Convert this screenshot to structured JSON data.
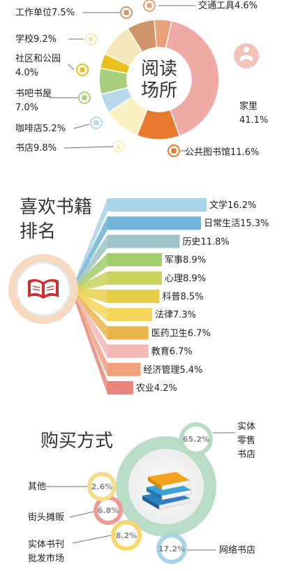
{
  "palette": {
    "line": "#6d6d6d",
    "ring_gray": "#e6e6e6",
    "book_red": "#cf2e2e",
    "home_pink": "#f2bcb8",
    "library_orange": "#e47b2e",
    "coffee_teal": "#6aa9c8"
  },
  "reading_places": {
    "center_title_line1": "阅读",
    "center_title_line2": "场所"
  },
  "favorite_books": {
    "title_line1": "喜欢书籍",
    "title_line2": "排名"
  },
  "purchase": {
    "title": "购买方式"
  },
  "chart_data": [
    {
      "type": "pie",
      "title": "阅读场所",
      "slices": [
        {
          "label": "家里",
          "value": 41.1,
          "value_label": "41.1%",
          "color": "#efaaa6",
          "icon": "home-reading-icon"
        },
        {
          "label": "公共图书馆",
          "value": 11.6,
          "value_label": "11.6%",
          "color": "#e8792d",
          "icon": "library-icon"
        },
        {
          "label": "书店",
          "value": 9.8,
          "value_label": "9.8%",
          "color": "#fbf0c0",
          "icon": "bookstore-icon"
        },
        {
          "label": "咖啡店",
          "value": 5.2,
          "value_label": "5.2%",
          "color": "#b7d7ea",
          "icon": "coffee-cup-icon"
        },
        {
          "label": "书吧书屋",
          "value": 7.0,
          "value_label": "7.0%",
          "color": "#a9cf7c",
          "icon": "book-bar-icon"
        },
        {
          "label": "社区和公园",
          "value": 4.0,
          "value_label": "4.0%",
          "color": "#e8c21c",
          "icon": "park-tree-icon"
        },
        {
          "label": "学校",
          "value": 9.2,
          "value_label": "9.2%",
          "color": "#f5e7b7",
          "icon": "school-desk-icon"
        },
        {
          "label": "工作单位",
          "value": 7.5,
          "value_label": "7.5%",
          "color": "#cf966a",
          "icon": "office-chair-icon"
        },
        {
          "label": "交通工具",
          "value": 4.6,
          "value_label": "4.6%",
          "color": "#e8a07a",
          "icon": "car-icon"
        }
      ]
    },
    {
      "type": "bar",
      "title": "喜欢书籍排名",
      "categories": [
        "文学",
        "日常生活",
        "历史",
        "军事",
        "心理",
        "科普",
        "法律",
        "医药卫生",
        "教育",
        "经济管理",
        "农业"
      ],
      "values": [
        16.2,
        15.3,
        11.8,
        8.9,
        8.9,
        8.5,
        7.3,
        6.7,
        6.7,
        5.4,
        4.2
      ],
      "value_labels": [
        "16.2%",
        "15.3%",
        "11.8%",
        "8.9%",
        "8.9%",
        "8.5%",
        "7.3%",
        "6.7%",
        "6.7%",
        "5.4%",
        "4.2%"
      ],
      "colors": [
        "#a8d4ea",
        "#6fb3d6",
        "#9fc3c6",
        "#a3cc6e",
        "#c9d25a",
        "#e6cf47",
        "#f5d65a",
        "#e9b54a",
        "#f2b7b7",
        "#eea07d",
        "#e8857a"
      ]
    },
    {
      "type": "pie",
      "title": "购买方式",
      "slices": [
        {
          "label": "实体零售书店",
          "value": 65.2,
          "value_label": "65.2%",
          "color": "#b8dbc4"
        },
        {
          "label": "网络书店",
          "value": 17.2,
          "value_label": "17.2%",
          "color": "#a8d4ea"
        },
        {
          "label": "实体书刊批发市场",
          "value": 8.2,
          "value_label": "8.2%",
          "color": "#f7d66a"
        },
        {
          "label": "街头摊贩",
          "value": 6.8,
          "value_label": "6.8%",
          "color": "#ee9a98"
        },
        {
          "label": "其他",
          "value": 2.6,
          "value_label": "2.6%",
          "color": "#f5dc8a"
        }
      ]
    }
  ]
}
